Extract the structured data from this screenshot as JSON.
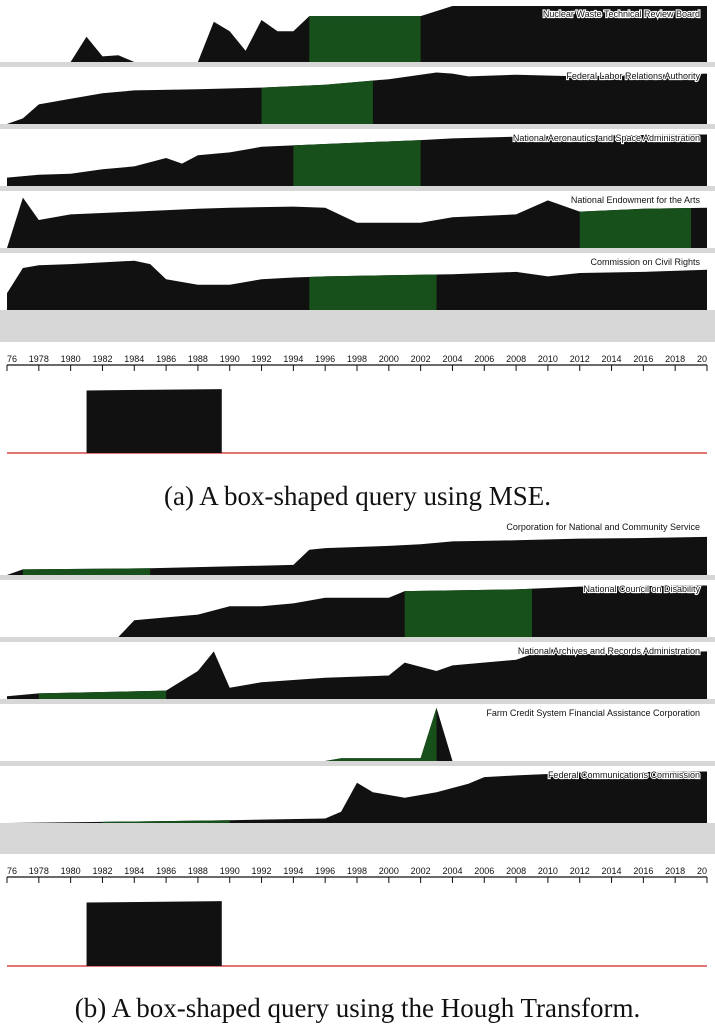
{
  "caption_a": "(a) A box-shaped query using MSE.",
  "caption_b": "(b) A box-shaped query using the Hough Transform.",
  "colors": {
    "area": "#111111",
    "highlight": "#17501a",
    "separator": "#d7d7d7",
    "baseline": "#d02020",
    "query": "#111111"
  },
  "chart_data": [
    {
      "type": "area",
      "title": "(a) A box-shaped query using MSE.",
      "x_range": [
        1976,
        2020
      ],
      "x_ticks": [
        "76",
        "1978",
        "1980",
        "1982",
        "1984",
        "1986",
        "1988",
        "1990",
        "1992",
        "1994",
        "1996",
        "1998",
        "2000",
        "2002",
        "2004",
        "2006",
        "2008",
        "2010",
        "2012",
        "2014",
        "2016",
        "2018",
        "20"
      ],
      "query_box": {
        "x_start": 1981,
        "x_end": 1989.5,
        "y_start": 0.92,
        "y_end": 0.94
      },
      "series": [
        {
          "name": "Nuclear Waste Technical Review Board",
          "highlight": [
            1995,
            2002
          ],
          "points": [
            [
              1976,
              0
            ],
            [
              1980,
              0
            ],
            [
              1981,
              0.45
            ],
            [
              1982,
              0.1
            ],
            [
              1983,
              0.12
            ],
            [
              1984,
              0
            ],
            [
              1988,
              0
            ],
            [
              1989,
              0.72
            ],
            [
              1990,
              0.55
            ],
            [
              1991,
              0.2
            ],
            [
              1992,
              0.75
            ],
            [
              1993,
              0.55
            ],
            [
              1994,
              0.55
            ],
            [
              1995,
              0.82
            ],
            [
              2002,
              0.82
            ],
            [
              2004,
              1
            ],
            [
              2020,
              1
            ]
          ]
        },
        {
          "name": "Federal Labor Relations Authority",
          "highlight": [
            1992,
            1999
          ],
          "points": [
            [
              1976,
              0
            ],
            [
              1977,
              0.1
            ],
            [
              1978,
              0.35
            ],
            [
              1980,
              0.45
            ],
            [
              1982,
              0.55
            ],
            [
              1984,
              0.6
            ],
            [
              1988,
              0.62
            ],
            [
              1992,
              0.65
            ],
            [
              1996,
              0.7
            ],
            [
              2000,
              0.8
            ],
            [
              2003,
              0.92
            ],
            [
              2004,
              0.9
            ],
            [
              2005,
              0.85
            ],
            [
              2008,
              0.88
            ],
            [
              2012,
              0.85
            ],
            [
              2020,
              0.9
            ]
          ]
        },
        {
          "name": "National Aeronautics and Space Administration",
          "highlight": [
            1994,
            2002
          ],
          "points": [
            [
              1976,
              0.15
            ],
            [
              1978,
              0.2
            ],
            [
              1980,
              0.22
            ],
            [
              1982,
              0.3
            ],
            [
              1984,
              0.35
            ],
            [
              1986,
              0.5
            ],
            [
              1987,
              0.4
            ],
            [
              1988,
              0.55
            ],
            [
              1990,
              0.6
            ],
            [
              1992,
              0.7
            ],
            [
              1996,
              0.75
            ],
            [
              2002,
              0.82
            ],
            [
              2004,
              0.85
            ],
            [
              2008,
              0.88
            ],
            [
              2012,
              0.9
            ],
            [
              2020,
              0.92
            ]
          ]
        },
        {
          "name": "National Endowment for the Arts",
          "highlight": [
            2012,
            2019
          ],
          "points": [
            [
              1976,
              0
            ],
            [
              1977,
              0.9
            ],
            [
              1978,
              0.5
            ],
            [
              1980,
              0.6
            ],
            [
              1984,
              0.65
            ],
            [
              1988,
              0.7
            ],
            [
              1990,
              0.72
            ],
            [
              1994,
              0.74
            ],
            [
              1996,
              0.72
            ],
            [
              1998,
              0.45
            ],
            [
              2002,
              0.45
            ],
            [
              2004,
              0.55
            ],
            [
              2008,
              0.6
            ],
            [
              2010,
              0.85
            ],
            [
              2012,
              0.65
            ],
            [
              2016,
              0.7
            ],
            [
              2020,
              0.72
            ]
          ]
        },
        {
          "name": "Commission on Civil Rights",
          "highlight": [
            1995,
            2003
          ],
          "points": [
            [
              1976,
              0.3
            ],
            [
              1977,
              0.75
            ],
            [
              1978,
              0.8
            ],
            [
              1980,
              0.82
            ],
            [
              1984,
              0.88
            ],
            [
              1985,
              0.82
            ],
            [
              1986,
              0.55
            ],
            [
              1988,
              0.45
            ],
            [
              1990,
              0.45
            ],
            [
              1992,
              0.55
            ],
            [
              1994,
              0.58
            ],
            [
              1996,
              0.6
            ],
            [
              2000,
              0.62
            ],
            [
              2004,
              0.64
            ],
            [
              2008,
              0.68
            ],
            [
              2010,
              0.6
            ],
            [
              2012,
              0.66
            ],
            [
              2016,
              0.68
            ],
            [
              2020,
              0.72
            ]
          ]
        }
      ]
    },
    {
      "type": "area",
      "title": "(b) A box-shaped query using the Hough Transform.",
      "x_range": [
        1976,
        2020
      ],
      "x_ticks": [
        "76",
        "1978",
        "1980",
        "1982",
        "1984",
        "1986",
        "1988",
        "1990",
        "1992",
        "1994",
        "1996",
        "1998",
        "2000",
        "2002",
        "2004",
        "2006",
        "2008",
        "2010",
        "2012",
        "2014",
        "2016",
        "2018",
        "20"
      ],
      "query_box": {
        "x_start": 1981,
        "x_end": 1989.5,
        "y_start": 0.92,
        "y_end": 0.94
      },
      "series": [
        {
          "name": "Corporation for National and Community Service",
          "highlight": [
            1977,
            1985
          ],
          "points": [
            [
              1976,
              0
            ],
            [
              1977,
              0.1
            ],
            [
              1985,
              0.12
            ],
            [
              1994,
              0.18
            ],
            [
              1995,
              0.45
            ],
            [
              1996,
              0.48
            ],
            [
              1998,
              0.5
            ],
            [
              2000,
              0.52
            ],
            [
              2002,
              0.55
            ],
            [
              2004,
              0.6
            ],
            [
              2008,
              0.62
            ],
            [
              2012,
              0.65
            ],
            [
              2016,
              0.66
            ],
            [
              2020,
              0.68
            ]
          ]
        },
        {
          "name": "National Council on Disability",
          "highlight": [
            2001,
            2009
          ],
          "points": [
            [
              1976,
              0
            ],
            [
              1983,
              0
            ],
            [
              1984,
              0.3
            ],
            [
              1986,
              0.35
            ],
            [
              1988,
              0.4
            ],
            [
              1990,
              0.55
            ],
            [
              1992,
              0.55
            ],
            [
              1994,
              0.6
            ],
            [
              1996,
              0.7
            ],
            [
              2000,
              0.7
            ],
            [
              2001,
              0.82
            ],
            [
              2008,
              0.85
            ],
            [
              2012,
              0.9
            ],
            [
              2020,
              0.92
            ]
          ]
        },
        {
          "name": "National Archives and Records Administration",
          "highlight": [
            1978,
            1986
          ],
          "points": [
            [
              1976,
              0.05
            ],
            [
              1978,
              0.1
            ],
            [
              1986,
              0.15
            ],
            [
              1988,
              0.5
            ],
            [
              1989,
              0.85
            ],
            [
              1990,
              0.2
            ],
            [
              1992,
              0.3
            ],
            [
              1996,
              0.38
            ],
            [
              2000,
              0.42
            ],
            [
              2001,
              0.65
            ],
            [
              2003,
              0.5
            ],
            [
              2004,
              0.6
            ],
            [
              2008,
              0.7
            ],
            [
              2010,
              0.9
            ],
            [
              2012,
              0.8
            ],
            [
              2016,
              0.82
            ],
            [
              2020,
              0.85
            ]
          ]
        },
        {
          "name": "Farm Credit System Financial Assistance Corporation",
          "highlight": [
            1996,
            2003
          ],
          "points": [
            [
              1976,
              0
            ],
            [
              1996,
              0
            ],
            [
              1997,
              0.05
            ],
            [
              2002,
              0.05
            ],
            [
              2003,
              0.95
            ],
            [
              2004,
              0
            ],
            [
              2020,
              0
            ]
          ]
        },
        {
          "name": "Federal Communications Commission",
          "highlight": [
            1982,
            1990
          ],
          "points": [
            [
              1976,
              0
            ],
            [
              1982,
              0.02
            ],
            [
              1990,
              0.05
            ],
            [
              1996,
              0.08
            ],
            [
              1997,
              0.2
            ],
            [
              1998,
              0.72
            ],
            [
              1999,
              0.55
            ],
            [
              2001,
              0.45
            ],
            [
              2003,
              0.55
            ],
            [
              2005,
              0.7
            ],
            [
              2006,
              0.82
            ],
            [
              2008,
              0.85
            ],
            [
              2012,
              0.9
            ],
            [
              2020,
              0.92
            ]
          ]
        }
      ]
    }
  ]
}
